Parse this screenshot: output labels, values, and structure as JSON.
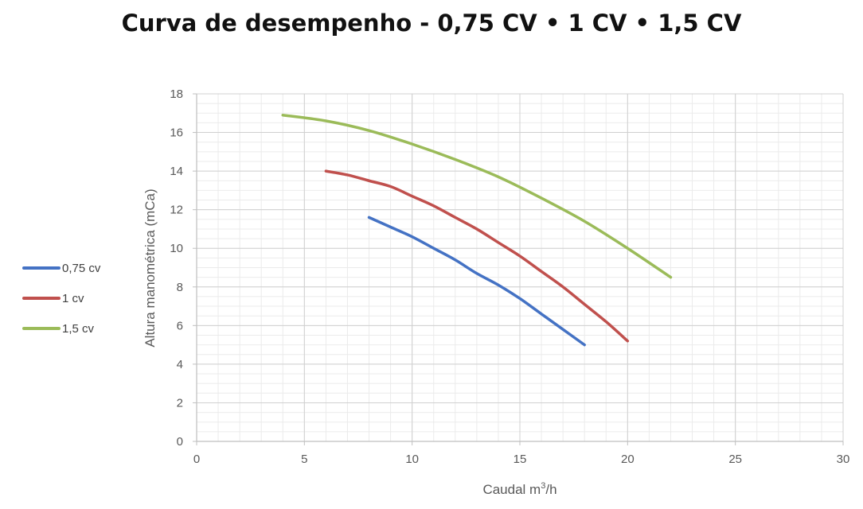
{
  "chart_data": {
    "type": "line",
    "title": "Curva de desempenho - 0,75 CV • 1 CV • 1,5 CV",
    "xlabel": "Caudal m3/h",
    "xlabel_main": "Caudal m",
    "xlabel_sup": "3",
    "xlabel_tail": "/h",
    "ylabel": "Altura manométrica (mCa)",
    "xlim": [
      0,
      30
    ],
    "ylim": [
      0,
      18
    ],
    "x_ticks": [
      0,
      5,
      10,
      15,
      20,
      25,
      30
    ],
    "y_ticks": [
      0,
      2,
      4,
      6,
      8,
      10,
      12,
      14,
      16,
      18
    ],
    "grid": true,
    "legend_position": "left",
    "series": [
      {
        "name": "0,75 cv",
        "color": "#4472C4",
        "x": [
          8,
          9,
          10,
          11,
          12,
          13,
          14,
          15,
          16,
          17,
          18
        ],
        "y": [
          11.6,
          11.1,
          10.6,
          10.0,
          9.4,
          8.7,
          8.1,
          7.4,
          6.6,
          5.8,
          5.0
        ]
      },
      {
        "name": "1 cv",
        "color": "#C0504D",
        "x": [
          6,
          7,
          8,
          9,
          10,
          11,
          12,
          13,
          14,
          15,
          16,
          17,
          18,
          19,
          20
        ],
        "y": [
          14.0,
          13.8,
          13.5,
          13.2,
          12.7,
          12.2,
          11.6,
          11.0,
          10.3,
          9.6,
          8.8,
          8.0,
          7.1,
          6.2,
          5.2
        ]
      },
      {
        "name": "1,5 cv",
        "color": "#9BBB59",
        "x": [
          4,
          6,
          8,
          10,
          12,
          14,
          16,
          18,
          20,
          22
        ],
        "y": [
          16.9,
          16.6,
          16.1,
          15.4,
          14.6,
          13.7,
          12.6,
          11.4,
          10.0,
          8.5
        ]
      }
    ]
  }
}
